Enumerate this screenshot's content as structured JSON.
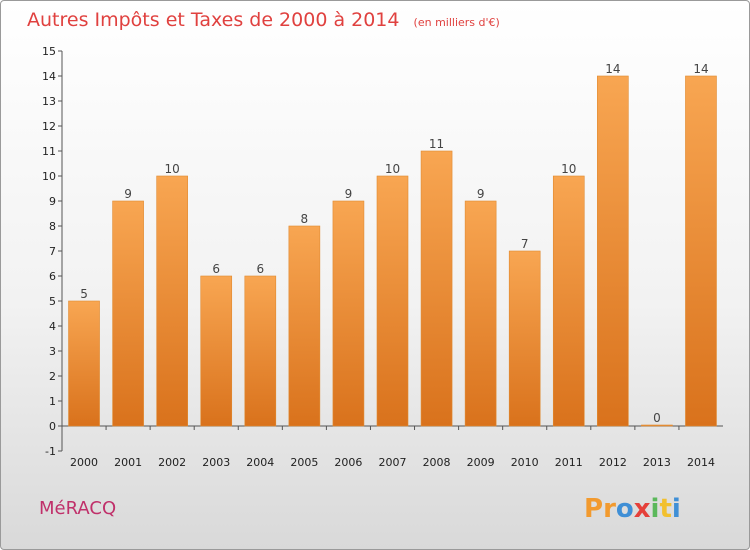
{
  "chart_data": {
    "type": "bar",
    "title": "Autres Impôts et Taxes de 2000 à 2014",
    "subtitle": "(en milliers d'€)",
    "categories": [
      "2000",
      "2001",
      "2002",
      "2003",
      "2004",
      "2005",
      "2006",
      "2007",
      "2008",
      "2009",
      "2010",
      "2011",
      "2012",
      "2013",
      "2014"
    ],
    "values": [
      5,
      9,
      10,
      6,
      6,
      8,
      9,
      10,
      11,
      9,
      7,
      10,
      14,
      0,
      14
    ],
    "ylim": [
      -1,
      15
    ],
    "yticks": [
      -1,
      0,
      1,
      2,
      3,
      4,
      5,
      6,
      7,
      8,
      9,
      10,
      11,
      12,
      13,
      14,
      15
    ],
    "grid": false,
    "bar_color": "#f5a14a"
  },
  "commune": "MéRACQ",
  "logo": {
    "letters": [
      "P",
      "r",
      "o",
      "x",
      "i",
      "t",
      "i"
    ],
    "colors": [
      "#f29a2e",
      "#f29a2e",
      "#3f8fd6",
      "#e5403a",
      "#5bb85b",
      "#f2c02e",
      "#3f8fd6"
    ]
  }
}
